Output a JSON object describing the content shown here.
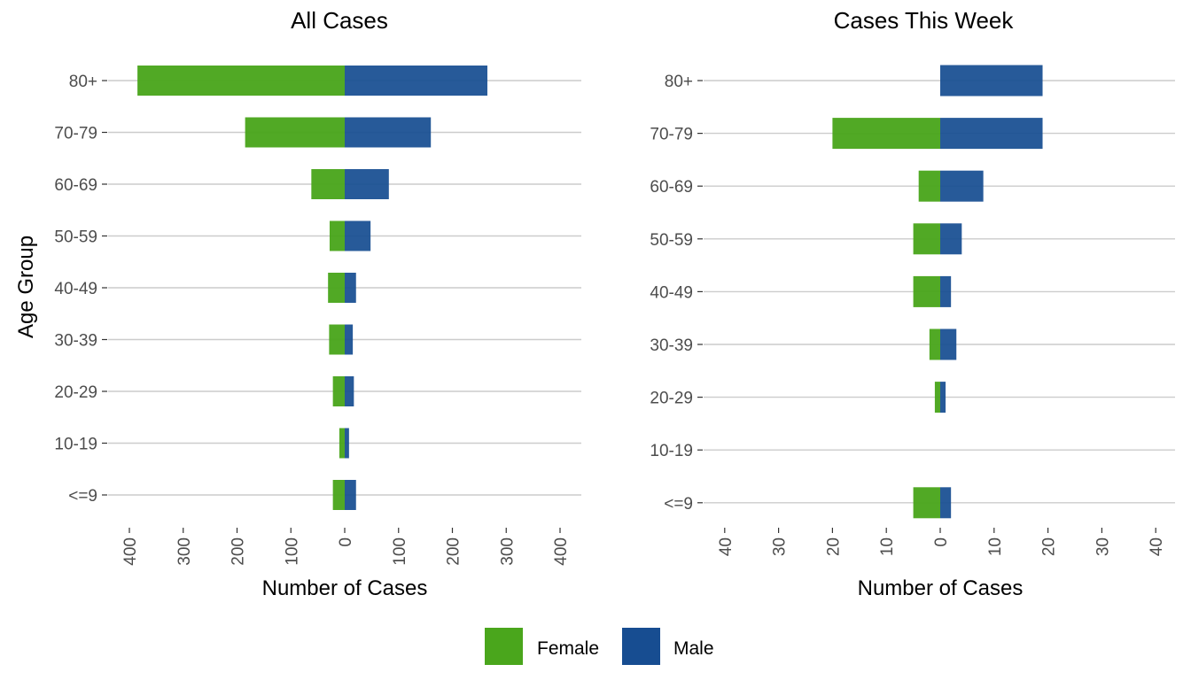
{
  "chart_data": [
    {
      "type": "bar",
      "orientation": "horizontal",
      "layout": "population-pyramid",
      "title": "All Cases",
      "xlabel": "Number of Cases",
      "ylabel": "Age Group",
      "categories": [
        "80+",
        "70-79",
        "60-69",
        "50-59",
        "40-49",
        "30-39",
        "20-29",
        "10-19",
        "<=9"
      ],
      "xlim": [
        -420,
        420
      ],
      "xticks": [
        -400,
        -300,
        -200,
        -100,
        0,
        100,
        200,
        300,
        400
      ],
      "xtick_labels": [
        "400",
        "300",
        "200",
        "100",
        "0",
        "100",
        "200",
        "300",
        "400"
      ],
      "series": [
        {
          "name": "Female",
          "values": [
            385,
            185,
            62,
            28,
            31,
            29,
            22,
            10,
            22
          ]
        },
        {
          "name": "Male",
          "values": [
            265,
            160,
            82,
            48,
            21,
            15,
            17,
            8,
            21
          ]
        }
      ],
      "grid": true
    },
    {
      "type": "bar",
      "orientation": "horizontal",
      "layout": "population-pyramid",
      "title": "Cases This Week",
      "xlabel": "Number of Cases",
      "ylabel": "",
      "categories": [
        "80+",
        "70-79",
        "60-69",
        "50-59",
        "40-49",
        "30-39",
        "20-29",
        "10-19",
        "<=9"
      ],
      "xlim": [
        -42,
        42
      ],
      "xticks": [
        -40,
        -30,
        -20,
        -10,
        0,
        10,
        20,
        30,
        40
      ],
      "xtick_labels": [
        "40",
        "30",
        "20",
        "10",
        "0",
        "10",
        "20",
        "30",
        "40"
      ],
      "series": [
        {
          "name": "Female",
          "values": [
            0,
            20,
            4,
            5,
            5,
            2,
            1,
            0,
            5
          ]
        },
        {
          "name": "Male",
          "values": [
            19,
            19,
            8,
            4,
            2,
            3,
            1,
            0,
            2
          ]
        }
      ],
      "grid": true
    }
  ],
  "legend": {
    "position": "bottom",
    "items": [
      {
        "label": "Female",
        "color": "#4aa61c"
      },
      {
        "label": "Male",
        "color": "#174d91"
      }
    ]
  },
  "colors": {
    "female": "#4aa61c",
    "male": "#174d91"
  }
}
